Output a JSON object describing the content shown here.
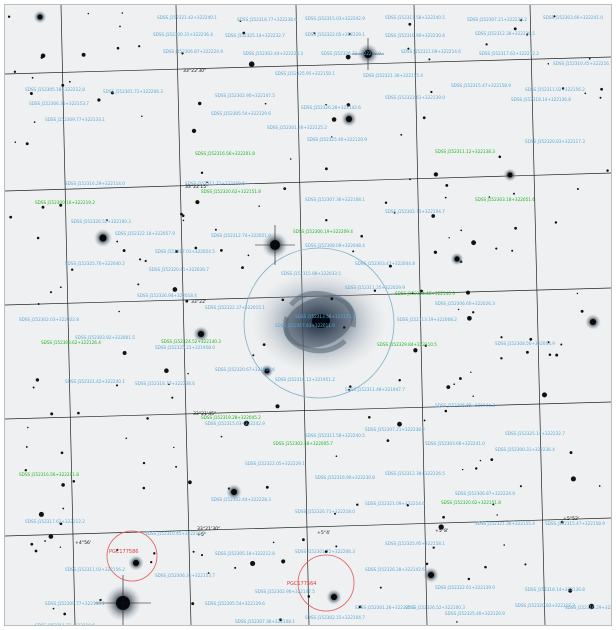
{
  "image": {
    "description_colors": {
      "background": "#eef0f1",
      "grid": "#1e1e1e",
      "catalog_label": "#5aa9d6",
      "highlight_label": "#1fb51f",
      "pgc_label": "#e23838",
      "galaxy_circle": "#7fb0c8"
    }
  },
  "coordinates": {
    "dec_ticks": [
      "33°22'30\"",
      "33°22'15\"",
      "33°22'",
      "33°21'45\"",
      "33°21'30\""
    ],
    "ra_ticks": [
      "+4°56'",
      "+5°",
      "+5°4'",
      "+5°8'",
      "+5°52'"
    ]
  },
  "labels": {
    "pgc_a": "PGC177586",
    "pgc_b": "PGC177564",
    "center": "SDSS J152313.56+322125.3",
    "green": [
      "SDSS J152316.56+322201.8",
      "SDSS J152320.62+322151.8",
      "SDSS J152306.19+322209.4",
      "SDSS J152300.16+322219.2",
      "SDSS J152311.12+322138.3",
      "SDSS J152303.18+322051.6",
      "SDSS J152314.46+322140.9",
      "SDSS J152308.62+322126.4",
      "SDSS J152324.52+322140.3",
      "SDSS J152329.84+322110.5",
      "SDSS J152319.28+322045.2",
      "SDSS J152302.48+322005.7"
    ],
    "blue": [
      "SDSS J152321.42+322240.1",
      "SDSS J152318.77+322238.6",
      "SDSS J152315.03+322242.9",
      "SDSS J152311.58+322240.5",
      "SDSS J152307.21+322238.2",
      "SDSS J152303.66+322241.0",
      "SDSS J152300.31+322236.4",
      "SDSS J152325.14+322232.7",
      "SDSS J152322.05+322229.1",
      "SDSS J152316.90+322230.8",
      "SDSS J152312.38+322226.5",
      "SDSS J152306.87+322224.9",
      "SDSS J152302.44+322228.3",
      "SDSS J152326.71+322218.0",
      "SDSS J152321.09+322214.6",
      "SDSS J152317.62+322212.2",
      "SDSS J152310.45+322216.7",
      "SDSS J152305.18+322212.8",
      "SDSS J152301.72+322206.3",
      "SDSS J152325.95+322158.1",
      "SDSS J152321.36+322155.4",
      "SDSS J152315.47+322158.9",
      "SDSS J152311.02+322156.2",
      "SDSS J152306.31+322153.7",
      "SDSS J152302.90+322147.5",
      "SDSS J152326.28+322142.6",
      "SDSS J152322.61+322139.0",
      "SDSS J152318.14+322136.8",
      "SDSS J152309.77+322133.1",
      "SDSS J152305.54+322129.6",
      "SDSS J152301.26+322125.2",
      "SDSS J152325.40+322120.9",
      "SDSS J152320.83+322117.3",
      "SDSS J152316.29+322114.0",
      "SDSS J152311.71+322110.6",
      "SDSS J152307.36+322108.1",
      "SDSS J152302.15+322104.7",
      "SDSS J152326.52+322100.3",
      "SDSS J152322.18+322057.9",
      "SDSS J152317.01+322054.5",
      "SDSS J152312.74+322051.0",
      "SDSS J152308.09+322048.4",
      "SDSS J152303.47+322044.8",
      "SDSS J152325.76+322040.2",
      "SDSS J152320.41+322036.7",
      "SDSS J152315.88+322033.5",
      "SDSS J152311.25+322029.9",
      "SDSS J152306.60+322026.3",
      "SDSS J152302.03+322022.8",
      "SDSS J152326.94+322018.4",
      "SDSS J152322.37+322015.1",
      "SDSS J152317.83+322011.6",
      "SDSS J152313.19+322008.2",
      "SDSS J152308.56+322004.9",
      "SDSS J152303.92+322001.5",
      "SDSS J152325.23+321958.0",
      "SDSS J152320.67+321954.6",
      "SDSS J152316.12+321951.2",
      "SDSS J152311.48+321947.7",
      "SDSS J152306.85+321944.3"
    ]
  }
}
